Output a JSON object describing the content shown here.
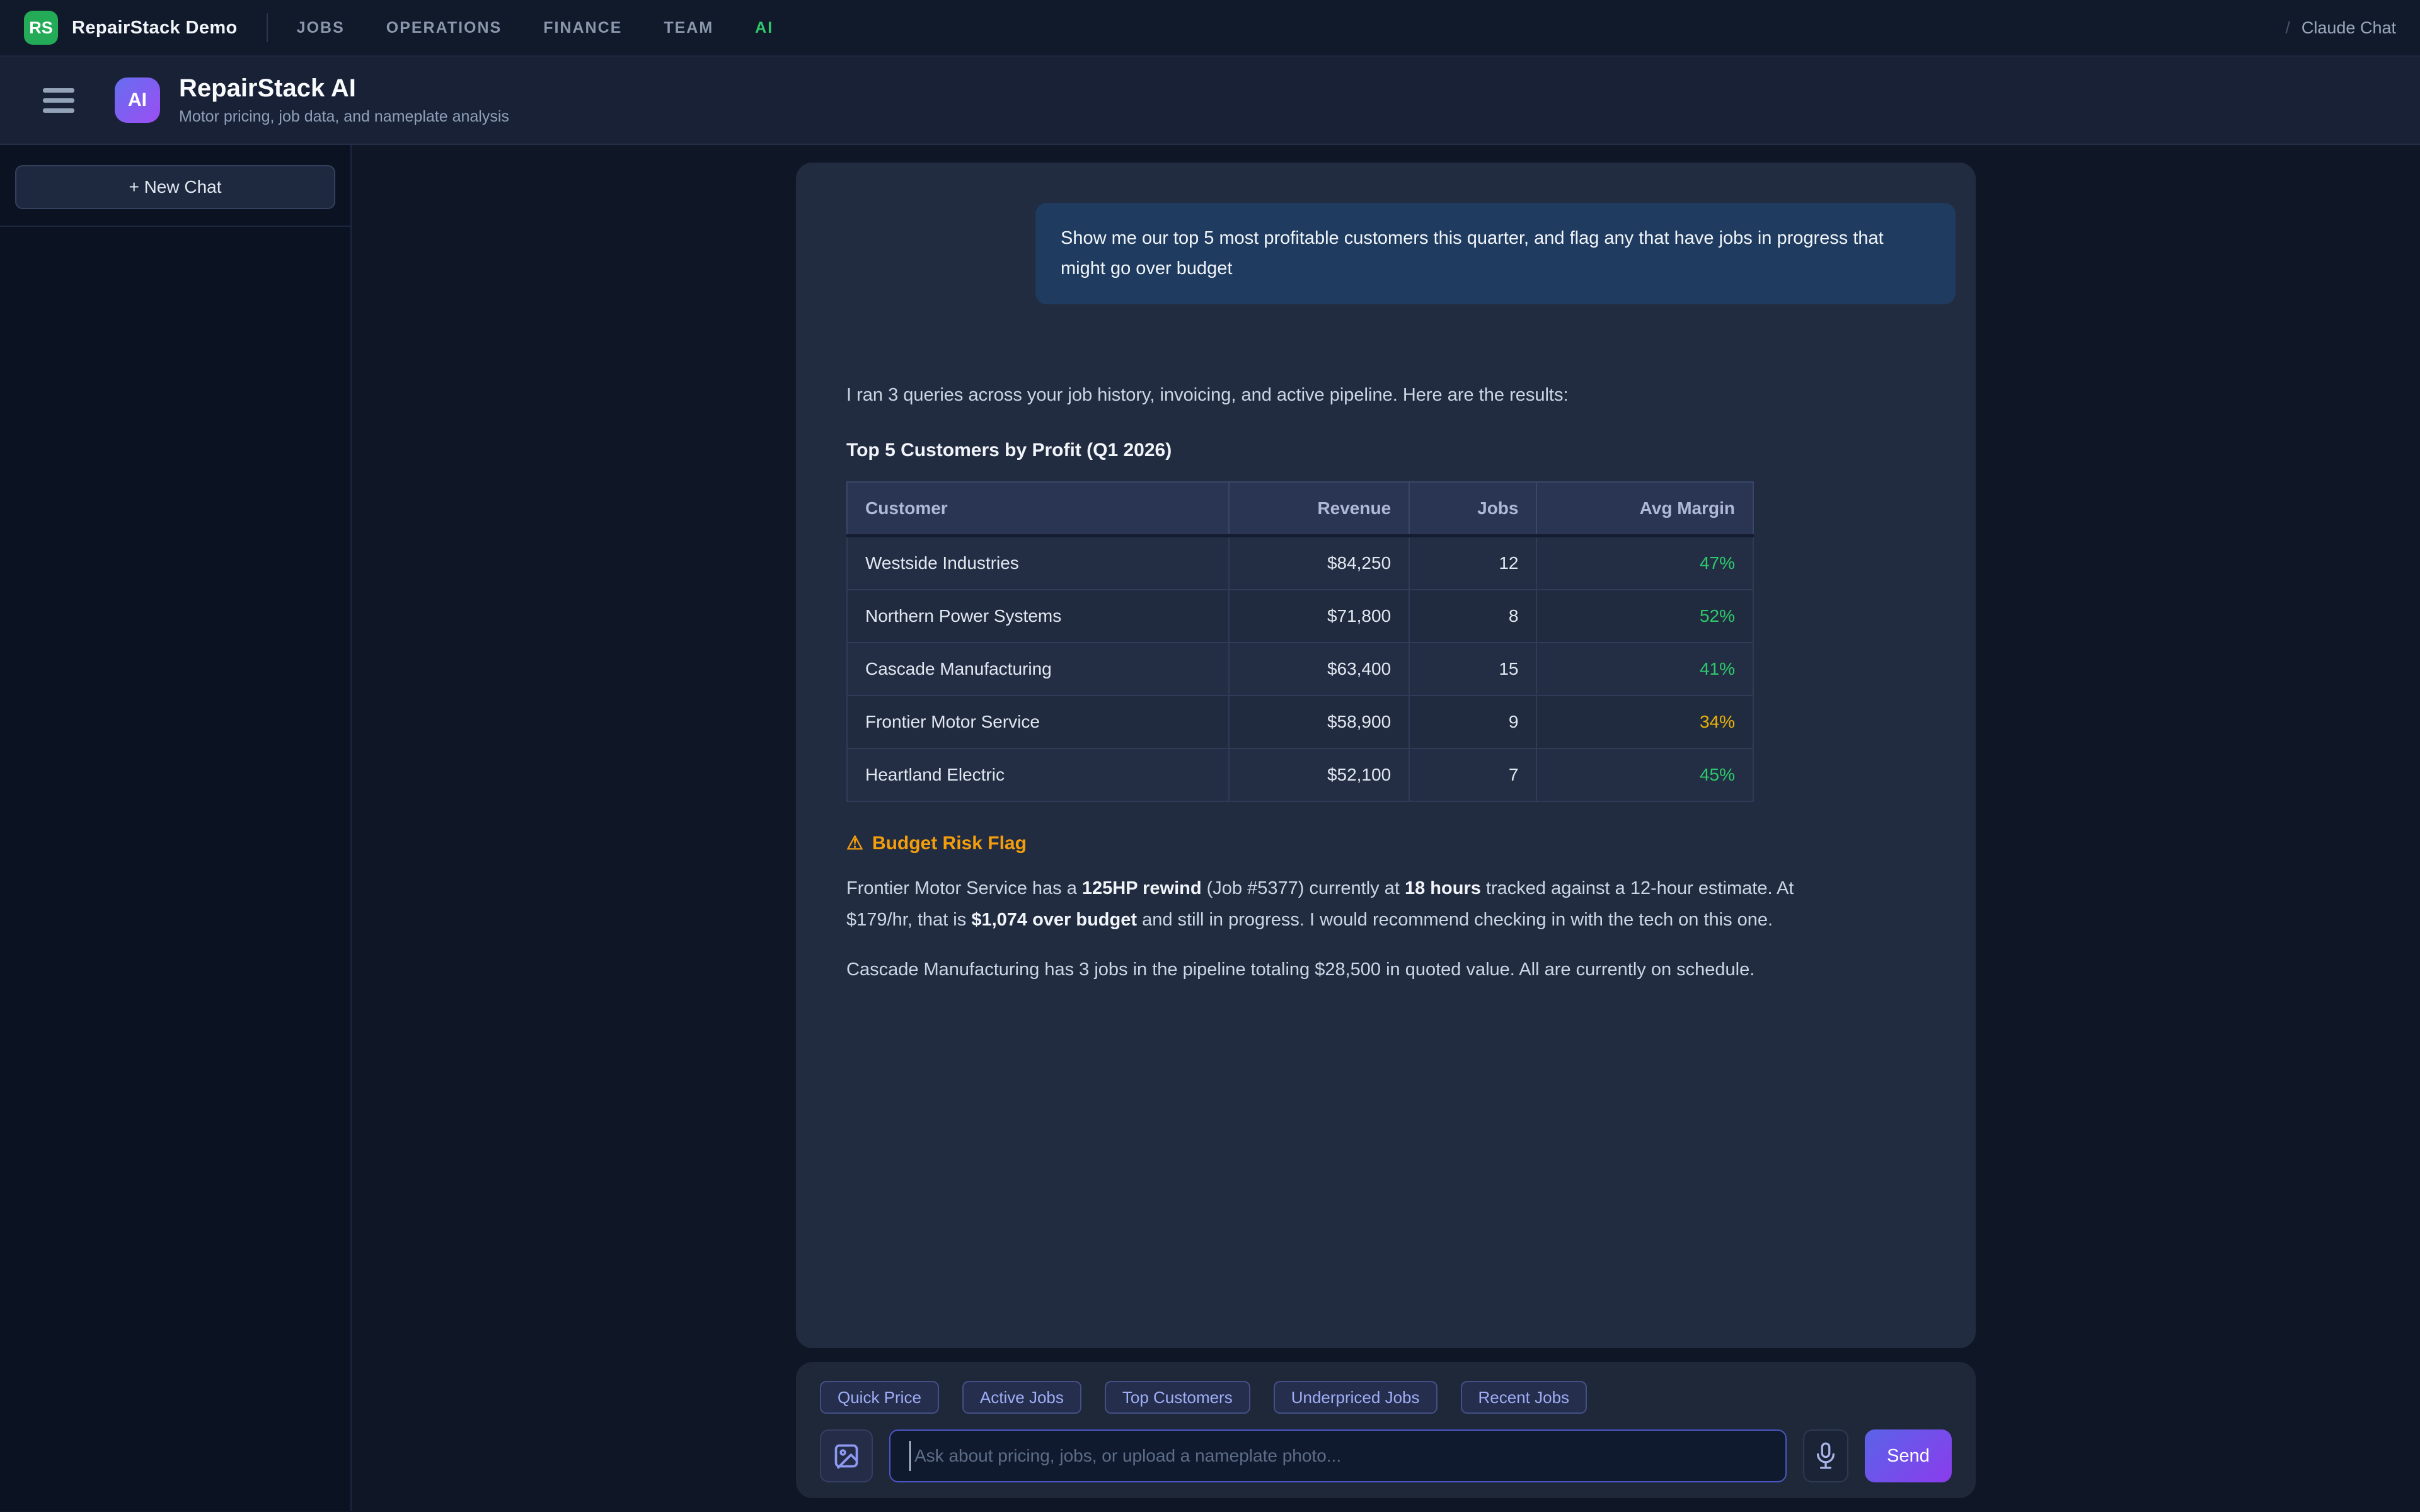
{
  "topnav": {
    "logo_text": "RS",
    "brand": "RepairStack Demo",
    "items": [
      {
        "label": "JOBS",
        "active": false
      },
      {
        "label": "OPERATIONS",
        "active": false
      },
      {
        "label": "FINANCE",
        "active": false
      },
      {
        "label": "TEAM",
        "active": false
      },
      {
        "label": "AI",
        "active": true
      }
    ],
    "breadcrumb_separator": "/",
    "breadcrumb_current": "Claude Chat"
  },
  "header": {
    "badge_text": "AI",
    "title": "RepairStack AI",
    "subtitle": "Motor pricing, job data, and nameplate analysis"
  },
  "sidebar": {
    "new_chat_label": "+ New Chat"
  },
  "chat": {
    "user_message": "Show me our top 5 most profitable customers this quarter, and flag any that have jobs in progress that might go over budget",
    "intro": "I ran 3 queries across your job history, invoicing, and active pipeline. Here are the results:",
    "table_title": "Top 5 Customers by Profit (Q1 2026)",
    "table": {
      "headers": [
        "Customer",
        "Revenue",
        "Jobs",
        "Avg Margin"
      ],
      "rows": [
        {
          "customer": "Westside Industries",
          "revenue": "$84,250",
          "jobs": "12",
          "margin": "47%",
          "tone": "green"
        },
        {
          "customer": "Northern Power Systems",
          "revenue": "$71,800",
          "jobs": "8",
          "margin": "52%",
          "tone": "green"
        },
        {
          "customer": "Cascade Manufacturing",
          "revenue": "$63,400",
          "jobs": "15",
          "margin": "41%",
          "tone": "green"
        },
        {
          "customer": "Frontier Motor Service",
          "revenue": "$58,900",
          "jobs": "9",
          "margin": "34%",
          "tone": "amber"
        },
        {
          "customer": "Heartland Electric",
          "revenue": "$52,100",
          "jobs": "7",
          "margin": "45%",
          "tone": "green"
        }
      ]
    },
    "risk": {
      "icon": "⚠",
      "title": "Budget Risk Flag",
      "paragraph1_segments": [
        {
          "text": "Frontier Motor Service has a ",
          "bold": false
        },
        {
          "text": "125HP rewind",
          "bold": true
        },
        {
          "text": " (Job #5377) currently at ",
          "bold": false
        },
        {
          "text": "18 hours",
          "bold": true
        },
        {
          "text": " tracked against a 12-hour estimate. At $179/hr, that is ",
          "bold": false
        },
        {
          "text": "$1,074 over budget",
          "bold": true
        },
        {
          "text": " and still in progress. I would recommend checking in with the tech on this one.",
          "bold": false
        }
      ],
      "paragraph2": "Cascade Manufacturing has 3 jobs in the pipeline totaling $28,500 in quoted value. All are currently on schedule."
    }
  },
  "composer": {
    "chips": [
      "Quick Price",
      "Active Jobs",
      "Top Customers",
      "Underpriced Jobs",
      "Recent Jobs"
    ],
    "input_placeholder": "Ask about pricing, jobs, or upload a nameplate photo...",
    "send_label": "Send"
  },
  "colors": {
    "brand_green": "#23ab57",
    "nav_active_green": "#2dc96a",
    "accent_purple": "#8a3cec",
    "margin_green": "#2dc96a",
    "margin_amber": "#eab308",
    "risk_orange": "#f59e0b",
    "user_bubble_blue": "#1f3b60"
  }
}
